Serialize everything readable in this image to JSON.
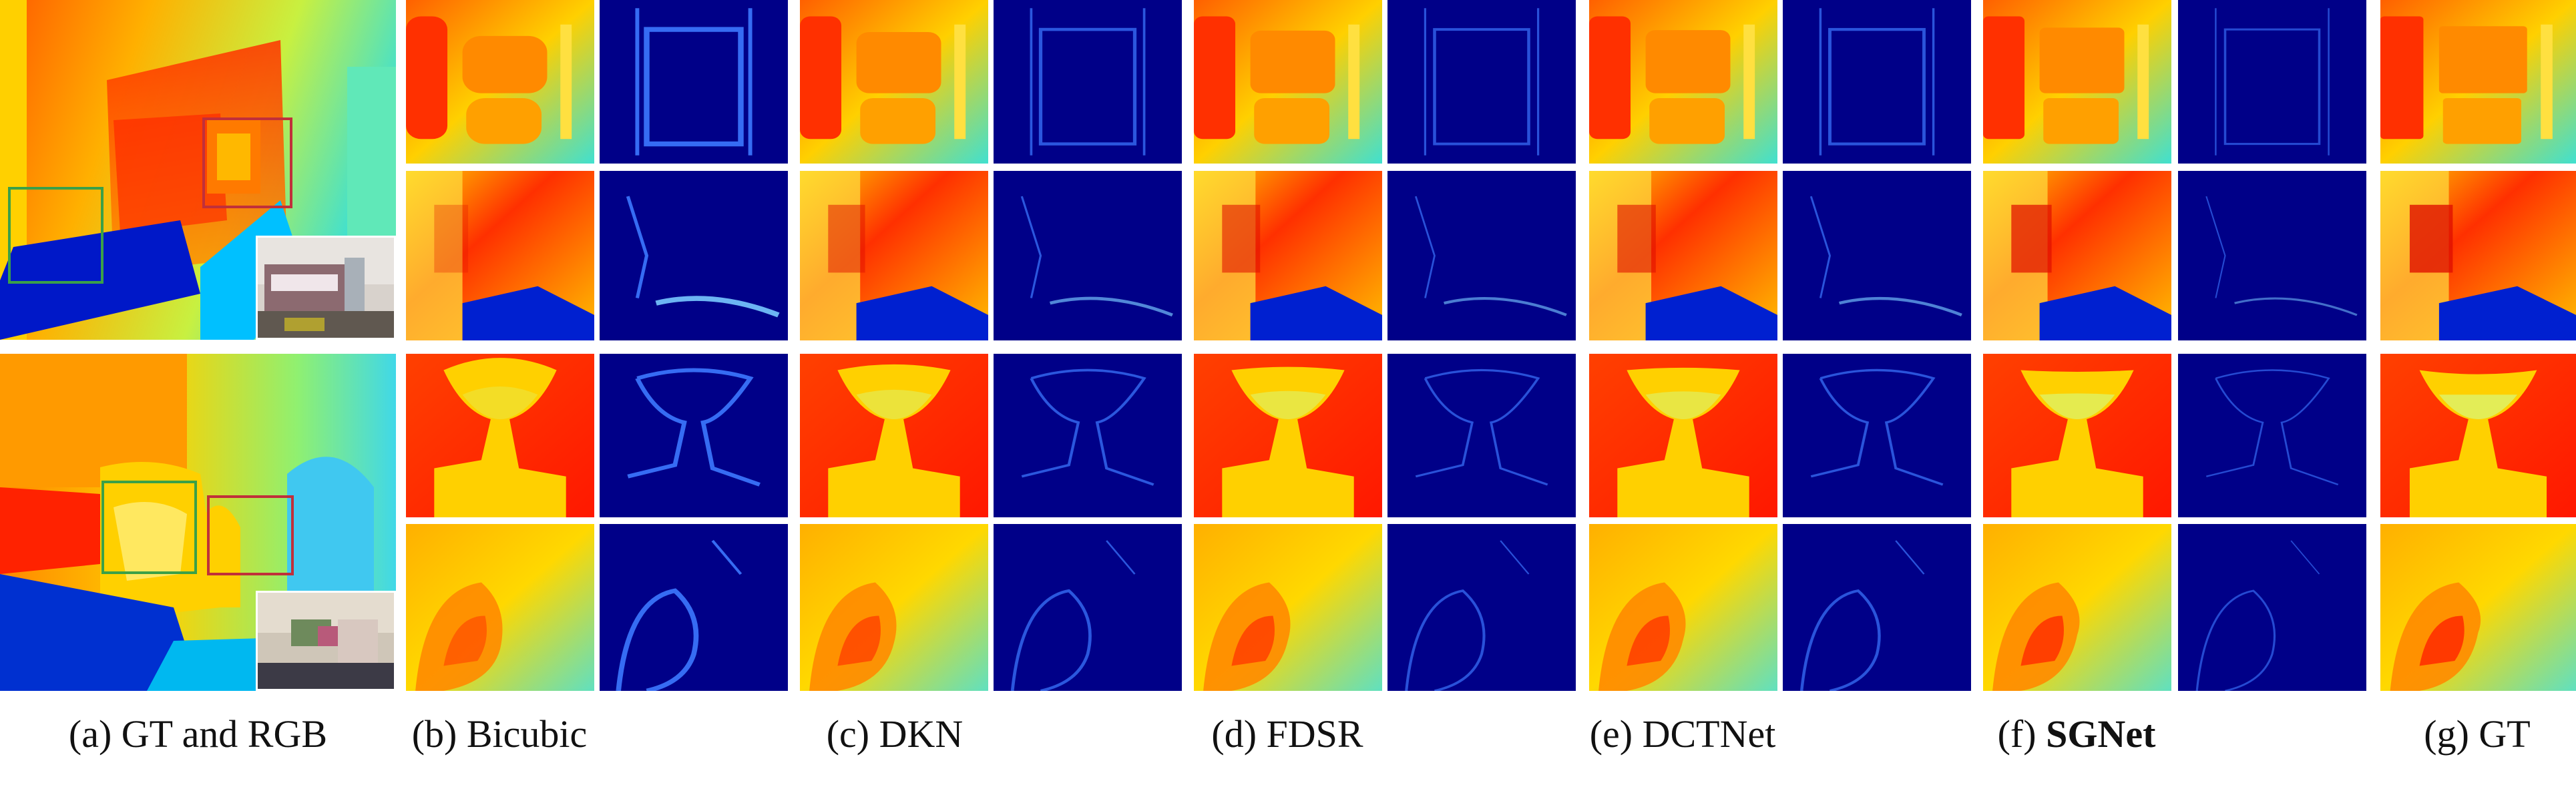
{
  "figure": {
    "captions": [
      {
        "prefix": "(a)",
        "label": "GT and RGB",
        "bold": false
      },
      {
        "prefix": "(b)",
        "label": "Bicubic",
        "bold": false
      },
      {
        "prefix": "(c)",
        "label": "DKN",
        "bold": false
      },
      {
        "prefix": "(d)",
        "label": "FDSR",
        "bold": false
      },
      {
        "prefix": "(e)",
        "label": "DCTNet",
        "bold": false
      },
      {
        "prefix": "(f)",
        "label": "SGNet",
        "bold": true
      },
      {
        "prefix": "(g)",
        "label": "GT",
        "bold": false
      }
    ],
    "methods": [
      "Bicubic",
      "DKN",
      "FDSR",
      "DCTNet",
      "SGNet",
      "GT"
    ],
    "colors": {
      "depth_near": "#d40000",
      "depth_mid": "#ffd000",
      "depth_far": "#00a0ff",
      "error_bg": "#000088",
      "box_red": "#c0303a",
      "box_green": "#3aa048"
    }
  }
}
